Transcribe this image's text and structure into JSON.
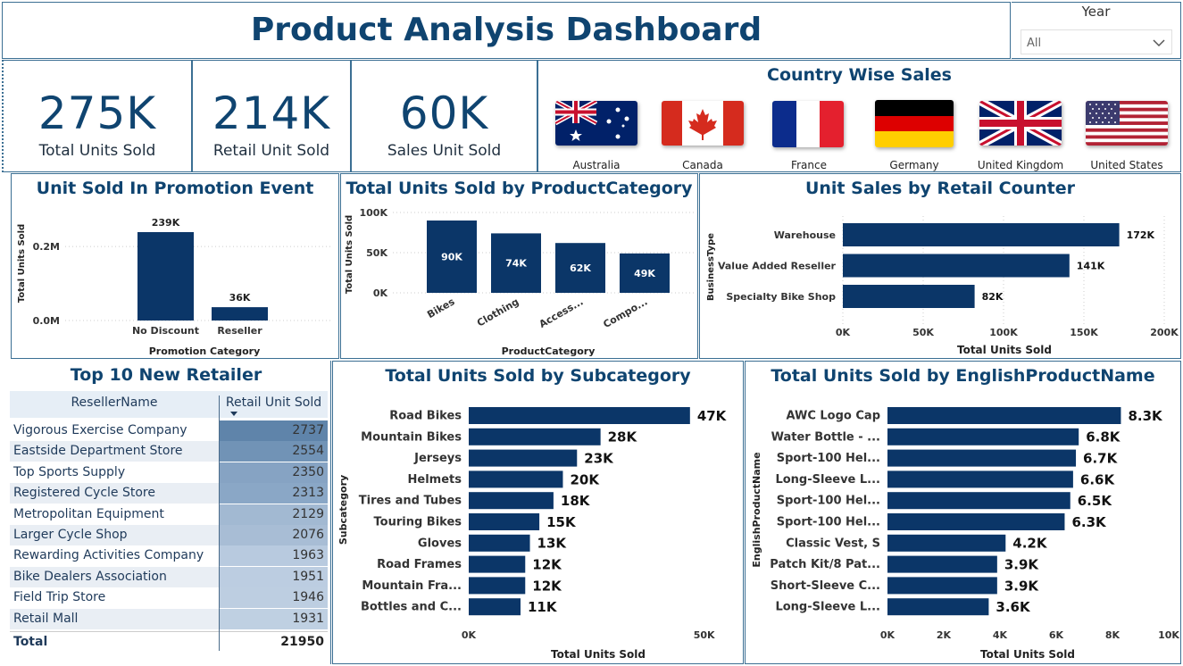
{
  "header": {
    "title": "Product Analysis Dashboard"
  },
  "year_filter": {
    "label": "Year",
    "value": "All"
  },
  "kpis": [
    {
      "value": "275K",
      "label": "Total Units Sold"
    },
    {
      "value": "214K",
      "label": "Retail Unit Sold"
    },
    {
      "value": "60K",
      "label": "Sales Unit Sold"
    }
  ],
  "country_sales": {
    "title": "Country Wise Sales",
    "countries": [
      "Australia",
      "Canada",
      "France",
      "Germany",
      "United Kingdom",
      "United States"
    ]
  },
  "colors": {
    "bar": "#0b3668",
    "title": "#0f4470",
    "border": "#3b6f93",
    "table_header_bg": "#e6eef6"
  },
  "chart_data": [
    {
      "type": "bar",
      "title": "Unit Sold In Promotion Event",
      "xlabel": "Promotion Category",
      "ylabel": "Total Units Sold",
      "categories": [
        "No Discount",
        "Reseller"
      ],
      "values": [
        239000,
        36000
      ],
      "data_labels": [
        "239K",
        "36K"
      ],
      "yticks": [
        "0.0M",
        "0.2M"
      ],
      "ylim": [
        0,
        280000
      ]
    },
    {
      "type": "bar",
      "title": "Total Units Sold by ProductCategory",
      "xlabel": "ProductCategory",
      "ylabel": "Total Units Sold",
      "categories": [
        "Bikes",
        "Clothing",
        "Access...",
        "Compo..."
      ],
      "values": [
        90000,
        74000,
        62000,
        49000
      ],
      "data_labels": [
        "90K",
        "74K",
        "62K",
        "49K"
      ],
      "yticks": [
        "0K",
        "50K",
        "100K"
      ],
      "ylim": [
        0,
        100000
      ]
    },
    {
      "type": "bar",
      "orientation": "horizontal",
      "title": "Unit Sales by Retail Counter",
      "xlabel": "Total Units Sold",
      "ylabel": "BusinessType",
      "categories": [
        "Warehouse",
        "Value Added Reseller",
        "Specialty Bike Shop"
      ],
      "values": [
        172000,
        141000,
        82000
      ],
      "data_labels": [
        "172K",
        "141K",
        "82K"
      ],
      "xticks": [
        "0K",
        "50K",
        "100K",
        "150K",
        "200K"
      ],
      "xlim": [
        0,
        200000
      ]
    },
    {
      "type": "table",
      "title": "Top 10 New Retailer",
      "columns": [
        "ResellerName",
        "Retail Unit Sold"
      ],
      "rows": [
        [
          "Vigorous Exercise Company",
          "2737"
        ],
        [
          "Eastside Department Store",
          "2554"
        ],
        [
          "Top Sports Supply",
          "2350"
        ],
        [
          "Registered Cycle Store",
          "2313"
        ],
        [
          "Metropolitan Equipment",
          "2129"
        ],
        [
          "Larger Cycle Shop",
          "2076"
        ],
        [
          "Rewarding Activities Company",
          "1963"
        ],
        [
          "Bike Dealers Association",
          "1951"
        ],
        [
          "Field Trip Store",
          "1946"
        ],
        [
          "Retail Mall",
          "1931"
        ]
      ],
      "total_label": "Total",
      "total_value": "21950"
    },
    {
      "type": "bar",
      "orientation": "horizontal",
      "title": "Total Units Sold by Subcategory",
      "xlabel": "Total Units Sold",
      "ylabel": "Subcategory",
      "categories": [
        "Road Bikes",
        "Mountain Bikes",
        "Jerseys",
        "Helmets",
        "Tires and Tubes",
        "Touring Bikes",
        "Gloves",
        "Road Frames",
        "Mountain Fra...",
        "Bottles and C..."
      ],
      "values": [
        47000,
        28000,
        23000,
        20000,
        18000,
        15000,
        13000,
        12000,
        12000,
        11000
      ],
      "data_labels": [
        "47K",
        "28K",
        "23K",
        "20K",
        "18K",
        "15K",
        "13K",
        "12K",
        "12K",
        "11K"
      ],
      "xticks": [
        "0K",
        "50K"
      ],
      "xlim": [
        0,
        55000
      ]
    },
    {
      "type": "bar",
      "orientation": "horizontal",
      "title": "Total Units Sold by EnglishProductName",
      "xlabel": "Total Units Sold",
      "ylabel": "EnglishProductName",
      "categories": [
        "AWC Logo Cap",
        "Water Bottle - ...",
        "Sport-100 Hel...",
        "Long-Sleeve L...",
        "Sport-100 Hel...",
        "Sport-100 Hel...",
        "Classic Vest, S",
        "Patch Kit/8 Pat...",
        "Short-Sleeve C...",
        "Long-Sleeve L..."
      ],
      "values": [
        8300,
        6800,
        6700,
        6600,
        6500,
        6300,
        4200,
        3900,
        3900,
        3600
      ],
      "data_labels": [
        "8.3K",
        "6.8K",
        "6.7K",
        "6.6K",
        "6.5K",
        "6.3K",
        "4.2K",
        "3.9K",
        "3.9K",
        "3.6K"
      ],
      "xticks": [
        "0K",
        "2K",
        "4K",
        "6K",
        "8K",
        "10K"
      ],
      "xlim": [
        0,
        10000
      ]
    }
  ]
}
